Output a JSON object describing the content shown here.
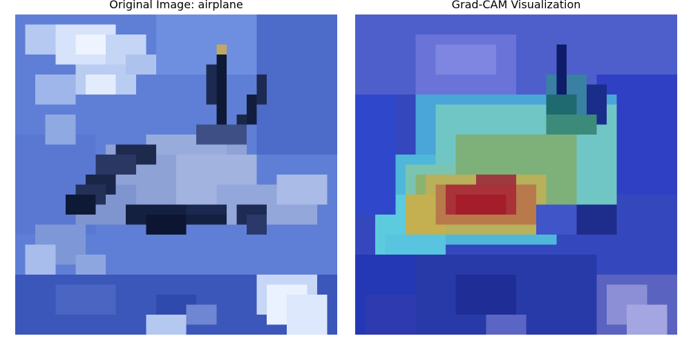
{
  "figure": {
    "left_panel": {
      "title": "Original Image: airplane",
      "image_description": "pixelated 32x32 photo of a fighter jet against blue sky with white clouds"
    },
    "right_panel": {
      "title": "Grad-CAM Visualization",
      "image_description": "same photo with jet colormap heatmap overlay, hottest (red) region on aircraft nose/cockpit"
    },
    "colors": {
      "sky": "#5f7fd6",
      "cloud": "#dce8fb",
      "aircraft": "#8ea2d6",
      "shadow": "#0e1a35",
      "heat_low": "#2b3dc8",
      "heat_mid": "#6fd0e0",
      "heat_high": "#c4b050",
      "heat_max": "#a51d2a"
    }
  }
}
